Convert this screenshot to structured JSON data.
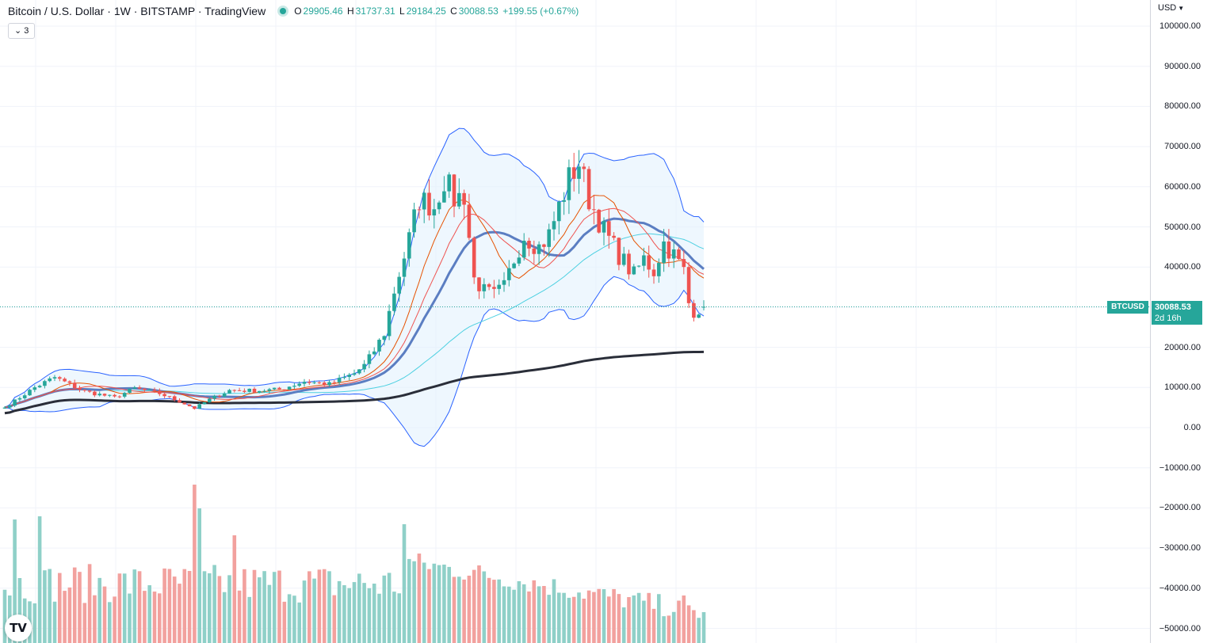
{
  "legend": {
    "title": "Bitcoin / U.S. Dollar · 1W · BITSTAMP · TradingView",
    "open_key": "O",
    "open": "29905.46",
    "high_key": "H",
    "high": "31737.31",
    "low_key": "L",
    "low": "29184.25",
    "close_key": "C",
    "close": "30088.53",
    "change": "+199.55 (+0.67%)"
  },
  "indicators_toggle": "3",
  "price_axis": {
    "currency": "USD",
    "ticks": [
      "100000.00",
      "90000.00",
      "80000.00",
      "70000.00",
      "60000.00",
      "50000.00",
      "40000.00",
      "30000.00",
      "20000.00",
      "10000.00",
      "0.00",
      "−10000.00",
      "−20000.00",
      "−30000.00",
      "−40000.00",
      "−50000.00"
    ]
  },
  "last_price": {
    "symbol": "BTCUSD",
    "value": "30088.53",
    "countdown": "2d 16h"
  },
  "logo": {
    "icon": "tradingview-logo-icon",
    "text": "TV"
  },
  "colors": {
    "up": "#26a69a",
    "down": "#ef5350",
    "volume_up": "#8fd0c8",
    "volume_down": "#f2a19e",
    "bollinger": "#2962ff",
    "bollinger_fill": "#e3f2fd",
    "ma_fast": "#e65100",
    "ma_mid": "#ef5350",
    "ma_cyan": "#4dd0e1",
    "ma_blue": "#5b7ec2",
    "ma_long": "#2a2e39"
  },
  "chart_data": {
    "type": "candlestick",
    "symbol": "BTCUSD",
    "interval": "1W",
    "ylim": [
      -52000,
      106000
    ],
    "grid": true,
    "anchors": [
      {
        "bar": 0,
        "close": 5000
      },
      {
        "bar": 6,
        "close": 10000
      },
      {
        "bar": 10,
        "close": 12500
      },
      {
        "bar": 16,
        "close": 9000
      },
      {
        "bar": 22,
        "close": 7500
      },
      {
        "bar": 26,
        "close": 9800
      },
      {
        "bar": 31,
        "close": 8500
      },
      {
        "bar": 35,
        "close": 6500
      },
      {
        "bar": 38,
        "close": 4800
      },
      {
        "bar": 41,
        "close": 7000
      },
      {
        "bar": 45,
        "close": 9300
      },
      {
        "bar": 50,
        "close": 9200
      },
      {
        "bar": 55,
        "close": 9500
      },
      {
        "bar": 60,
        "close": 11500
      },
      {
        "bar": 65,
        "close": 10800
      },
      {
        "bar": 70,
        "close": 13500
      },
      {
        "bar": 72,
        "close": 15500
      },
      {
        "bar": 74,
        "close": 19200
      },
      {
        "bar": 76,
        "close": 23500
      },
      {
        "bar": 78,
        "close": 34000
      },
      {
        "bar": 81,
        "close": 47000
      },
      {
        "bar": 83,
        "close": 57000
      },
      {
        "bar": 86,
        "close": 55000
      },
      {
        "bar": 88,
        "close": 62000
      },
      {
        "bar": 90,
        "close": 57000
      },
      {
        "bar": 92,
        "close": 58000
      },
      {
        "bar": 94,
        "close": 37000
      },
      {
        "bar": 96,
        "close": 34000
      },
      {
        "bar": 98,
        "close": 33000
      },
      {
        "bar": 100,
        "close": 35000
      },
      {
        "bar": 102,
        "close": 42000
      },
      {
        "bar": 104,
        "close": 48000
      },
      {
        "bar": 107,
        "close": 45000
      },
      {
        "bar": 109,
        "close": 48000
      },
      {
        "bar": 111,
        "close": 55000
      },
      {
        "bar": 113,
        "close": 62000
      },
      {
        "bar": 115,
        "close": 66000
      },
      {
        "bar": 117,
        "close": 57000
      },
      {
        "bar": 120,
        "close": 49000
      },
      {
        "bar": 123,
        "close": 43000
      },
      {
        "bar": 126,
        "close": 38000
      },
      {
        "bar": 128,
        "close": 42000
      },
      {
        "bar": 130,
        "close": 39000
      },
      {
        "bar": 132,
        "close": 46000
      },
      {
        "bar": 134,
        "close": 43000
      },
      {
        "bar": 136,
        "close": 39000
      },
      {
        "bar": 137,
        "close": 31000
      },
      {
        "bar": 138,
        "close": 29000
      },
      {
        "bar": 140,
        "close": 30088.53
      }
    ],
    "last_bar": {
      "open": 29905.46,
      "high": 31737.31,
      "low": 29184.25,
      "close": 30088.53
    },
    "last_change": {
      "abs": 199.55,
      "pct": 0.67
    },
    "volume_scale_max": 100,
    "volume_peaks": [
      {
        "bar": 38,
        "value": 100
      },
      {
        "bar": 39,
        "value": 85
      },
      {
        "bar": 7,
        "value": 80
      },
      {
        "bar": 2,
        "value": 78
      },
      {
        "bar": 80,
        "value": 75
      },
      {
        "bar": 46,
        "value": 68
      }
    ],
    "indicators": [
      {
        "name": "Bollinger Bands",
        "period": 20
      },
      {
        "name": "MA",
        "period": 10
      },
      {
        "name": "MA",
        "period": 20
      },
      {
        "name": "MA",
        "period": 30
      },
      {
        "name": "MA",
        "period": 50
      },
      {
        "name": "MA",
        "period": 200
      }
    ]
  }
}
